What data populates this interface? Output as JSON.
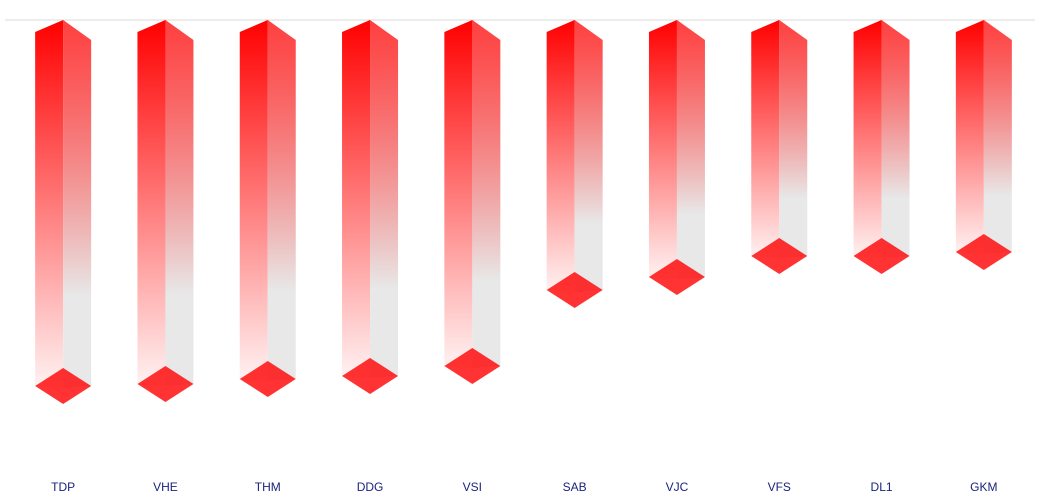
{
  "chart_data": {
    "type": "bar3d",
    "categories": [
      "TDP",
      "VHE",
      "THM",
      "DDG",
      "VSI",
      "SAB",
      "VJC",
      "VFS",
      "DL1",
      "GKM"
    ],
    "values": [
      -36.6,
      -36.4,
      -35.9,
      -35.6,
      -34.6,
      -27.0,
      -25.7,
      -23.6,
      -23.6,
      -23.2
    ],
    "color": "#ff0000",
    "ylim": [
      -46,
      0
    ]
  }
}
